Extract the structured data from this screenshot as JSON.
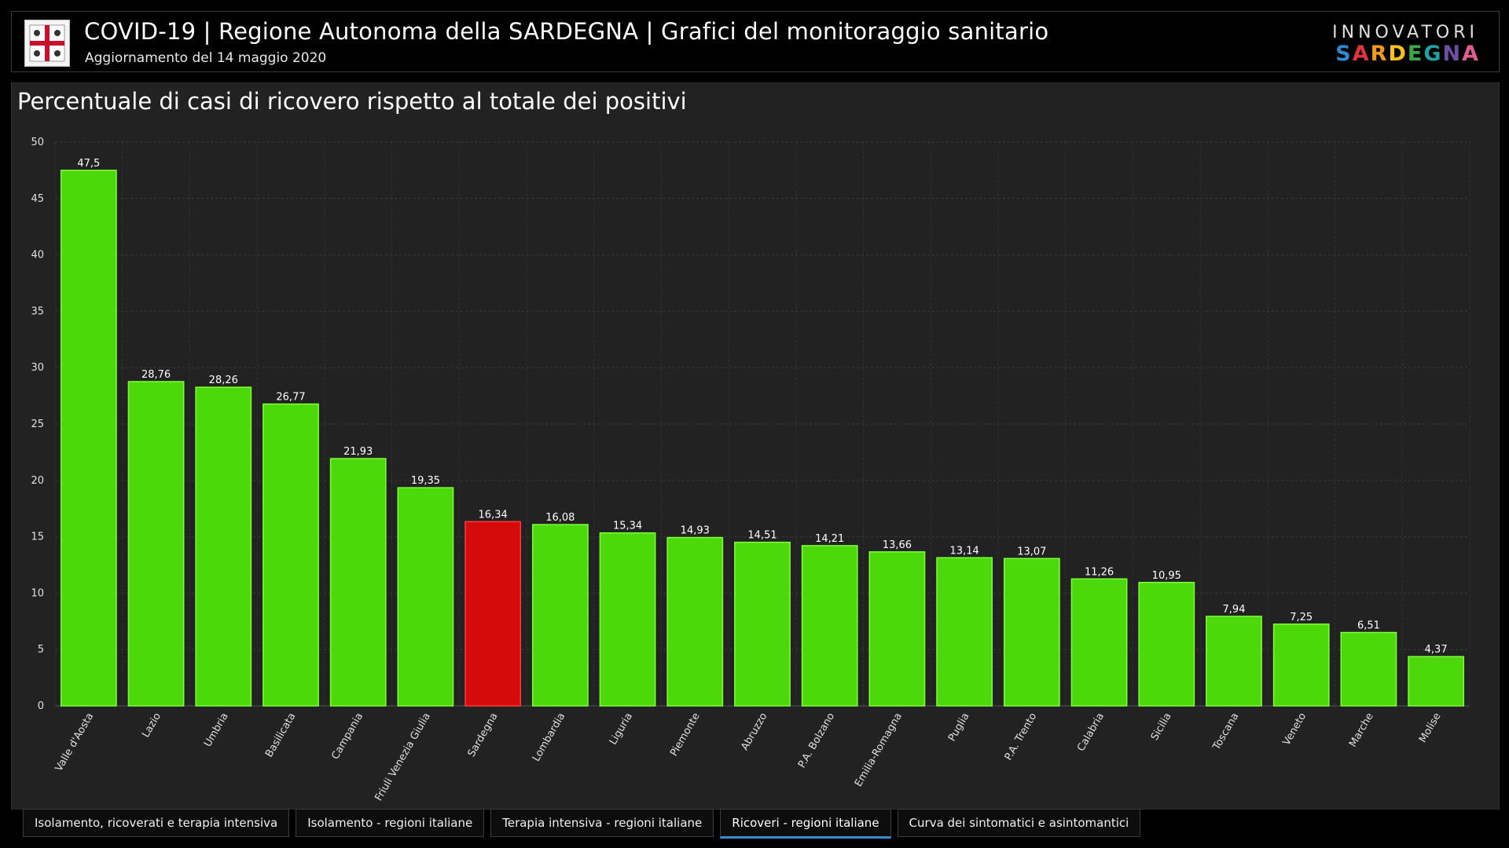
{
  "header": {
    "title": "COVID-19 | Regione Autonoma della SARDEGNA | Grafici del monitoraggio sanitario",
    "subtitle": "Aggiornamento del 14 maggio 2020",
    "brand_top": "INNOVATORI",
    "brand_bottom_letters": [
      "S",
      "A",
      "R",
      "D",
      "E",
      "G",
      "N",
      "A"
    ],
    "brand_colors": [
      "#2e8ad0",
      "#e2343c",
      "#f39a1f",
      "#f6c21c",
      "#38a84a",
      "#1fa3a0",
      "#6b4fa0",
      "#e05d8f"
    ]
  },
  "chart_data": {
    "type": "bar",
    "title": "Percentuale di casi di ricovero rispetto al totale dei positivi",
    "categories": [
      "Valle d'Aosta",
      "Lazio",
      "Umbria",
      "Basilicata",
      "Campania",
      "Friuli Venezia Giulia",
      "Sardegna",
      "Lombardia",
      "Liguria",
      "Piemonte",
      "Abruzzo",
      "P.A. Bolzano",
      "Emilia-Romagna",
      "Puglia",
      "P.A. Trento",
      "Calabria",
      "Sicilia",
      "Toscana",
      "Veneto",
      "Marche",
      "Molise"
    ],
    "values": [
      47.5,
      28.76,
      28.26,
      26.77,
      21.93,
      19.35,
      16.34,
      16.08,
      15.34,
      14.93,
      14.51,
      14.21,
      13.66,
      13.14,
      13.07,
      11.26,
      10.95,
      7.94,
      7.25,
      6.51,
      4.37
    ],
    "value_labels": [
      "47,5",
      "28,76",
      "28,26",
      "26,77",
      "21,93",
      "19,35",
      "16,34",
      "16,08",
      "15,34",
      "14,93",
      "14,51",
      "14,21",
      "13,66",
      "13,14",
      "13,07",
      "11,26",
      "10,95",
      "7,94",
      "7,25",
      "6,51",
      "4,37"
    ],
    "highlight_category": "Sardegna",
    "colors": {
      "default": "#4cd80a",
      "highlight": "#d50b0b",
      "bar_border": "#7dff3a"
    },
    "ylim": [
      0,
      50
    ],
    "yticks": [
      0,
      5,
      10,
      15,
      20,
      25,
      30,
      35,
      40,
      45,
      50
    ],
    "xlabel": "",
    "ylabel": "",
    "grid": true,
    "legend": "none"
  },
  "tabs": [
    {
      "label": "Isolamento, ricoverati e terapia intensiva",
      "active": false
    },
    {
      "label": "Isolamento - regioni italiane",
      "active": false
    },
    {
      "label": "Terapia intensiva - regioni italiane",
      "active": false
    },
    {
      "label": "Ricoveri - regioni italiane",
      "active": true
    },
    {
      "label": "Curva dei sintomatici e asintomantici",
      "active": false
    }
  ]
}
